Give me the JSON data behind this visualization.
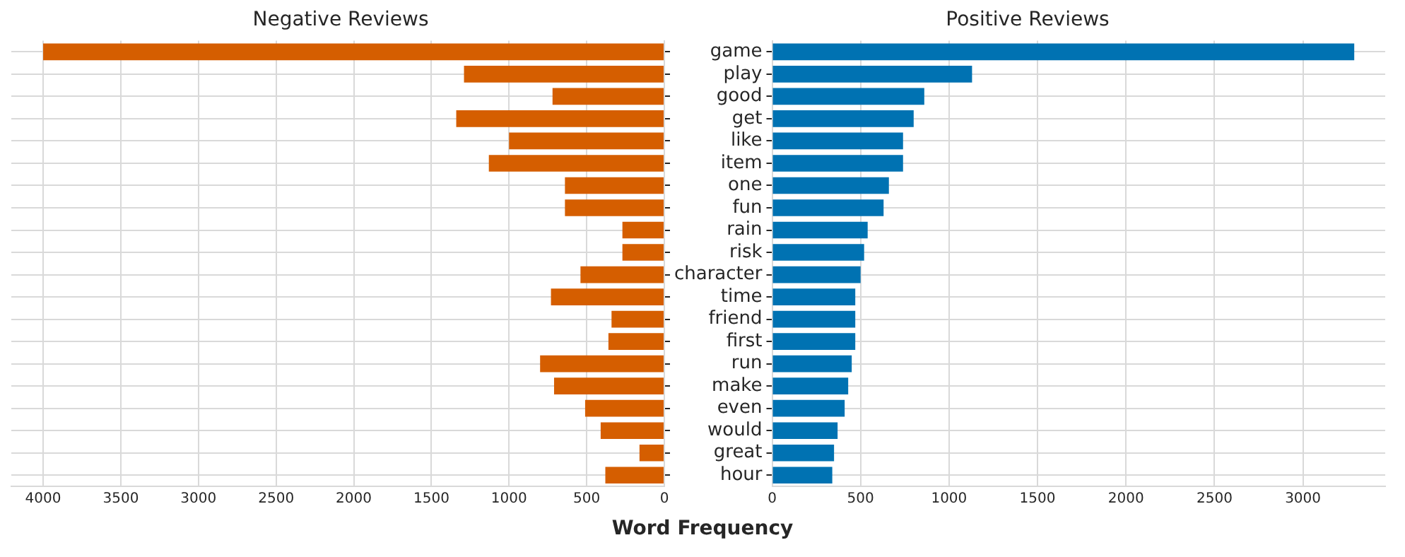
{
  "chart_data": [
    {
      "type": "bar",
      "orientation": "horizontal",
      "title": "Negative Reviews",
      "xlabel": "Word Frequency",
      "categories": [
        null,
        null,
        null,
        null,
        null,
        null,
        null,
        null,
        null,
        null,
        null,
        null,
        null,
        null,
        null,
        null,
        null,
        null,
        null,
        null
      ],
      "series": [
        {
          "color": "#d55e00",
          "values": [
            4000,
            1290,
            720,
            1340,
            1000,
            1130,
            640,
            640,
            270,
            270,
            540,
            730,
            340,
            360,
            800,
            710,
            510,
            410,
            160,
            380
          ]
        }
      ],
      "xlim": [
        4205,
        0
      ],
      "xticks": [
        0,
        500,
        1000,
        1500,
        2000,
        2500,
        3000,
        3500,
        4000
      ],
      "grid": true,
      "tick_labels": "x",
      "legend": false
    },
    {
      "type": "bar",
      "orientation": "horizontal",
      "title": "Positive Reviews",
      "categories": [
        "game",
        "play",
        "good",
        "get",
        "like",
        "item",
        "one",
        "fun",
        "rain",
        "risk",
        "character",
        "time",
        "friend",
        "first",
        "run",
        "make",
        "even",
        "would",
        "great",
        "hour"
      ],
      "series": [
        {
          "color": "#0072b2",
          "values": [
            3290,
            1130,
            860,
            800,
            740,
            740,
            660,
            630,
            540,
            520,
            500,
            470,
            470,
            470,
            450,
            430,
            410,
            370,
            350,
            340
          ]
        }
      ],
      "xlim": [
        0,
        3465
      ],
      "xticks": [
        0,
        500,
        1000,
        1500,
        2000,
        2500,
        3000
      ],
      "grid": true,
      "legend": false
    }
  ]
}
